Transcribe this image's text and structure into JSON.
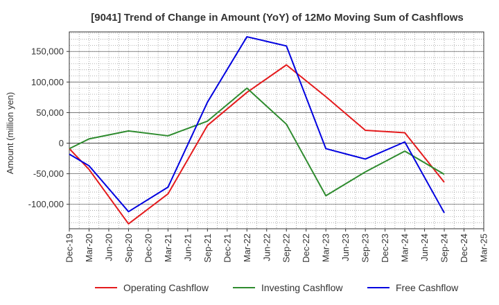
{
  "chart_data": {
    "type": "line",
    "title": "[9041]  Trend of Change in Amount (YoY) of 12Mo Moving Sum of Cashflows",
    "xlabel": "",
    "ylabel": "Amount (million yen)",
    "categories": [
      "Dec-19",
      "Mar-20",
      "Jun-20",
      "Sep-20",
      "Dec-20",
      "Mar-21",
      "Jun-21",
      "Sep-21",
      "Dec-21",
      "Mar-22",
      "Jun-22",
      "Sep-22",
      "Dec-22",
      "Mar-23",
      "Jun-23",
      "Sep-23",
      "Dec-23",
      "Mar-24",
      "Jun-24",
      "Sep-24",
      "Dec-24",
      "Mar-25"
    ],
    "ylim": [
      -140000,
      182000
    ],
    "yticks": [
      -100000,
      -50000,
      0,
      50000,
      100000,
      150000
    ],
    "ytick_labels": [
      "-100,000",
      "-50,000",
      "0",
      "50,000",
      "100,000",
      "150,000"
    ],
    "grid": true,
    "series": [
      {
        "name": "Operating Cashflow",
        "color": "#e41a1c",
        "values": [
          -9000,
          -43000,
          null,
          -132000,
          null,
          -83000,
          null,
          29000,
          null,
          83000,
          null,
          128000,
          null,
          76000,
          null,
          21000,
          null,
          17000,
          null,
          -64000,
          null,
          null
        ]
      },
      {
        "name": "Investing Cashflow",
        "color": "#2e8b2e",
        "values": [
          -9000,
          7000,
          null,
          20000,
          null,
          12000,
          null,
          36000,
          null,
          90000,
          null,
          31000,
          null,
          -86000,
          null,
          -47000,
          null,
          -13000,
          null,
          -51000,
          null,
          null
        ]
      },
      {
        "name": "Free Cashflow",
        "color": "#0000e0",
        "values": [
          -18000,
          -37000,
          null,
          -112000,
          null,
          -72000,
          null,
          67000,
          null,
          174000,
          null,
          159000,
          null,
          -9000,
          null,
          -26000,
          null,
          2000,
          null,
          -114000,
          null,
          null
        ]
      }
    ]
  }
}
